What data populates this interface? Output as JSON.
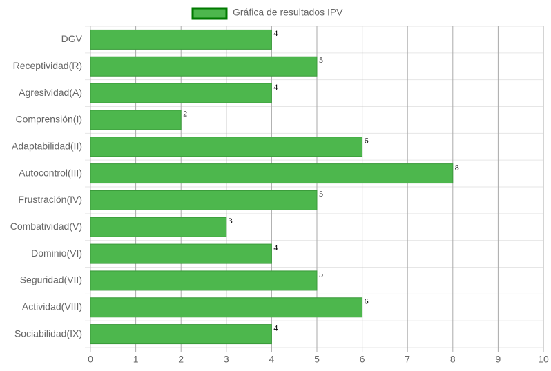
{
  "chart_data": {
    "type": "bar",
    "orientation": "horizontal",
    "categories": [
      "DGV",
      "Receptividad(R)",
      "Agresividad(A)",
      "Comprensión(I)",
      "Adaptabilidad(II)",
      "Autocontrol(III)",
      "Frustración(IV)",
      "Combatividad(V)",
      "Dominio(VI)",
      "Seguridad(VII)",
      "Actividad(VIII)",
      "Sociabilidad(IX)"
    ],
    "series": [
      {
        "name": "Gráfica de resultados IPV",
        "color": "#4db74d",
        "values": [
          4,
          5,
          4,
          2,
          6,
          8,
          5,
          3,
          4,
          5,
          6,
          4
        ]
      }
    ],
    "xlim": [
      0,
      10
    ],
    "xticks": [
      0,
      1,
      2,
      3,
      4,
      5,
      6,
      7,
      8,
      9,
      10
    ],
    "grid": true,
    "legend": "top"
  }
}
